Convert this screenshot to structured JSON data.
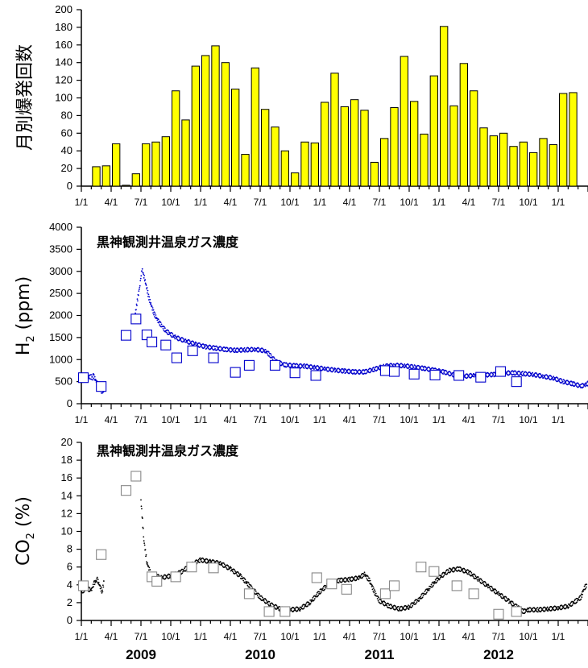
{
  "years": [
    "2009",
    "2010",
    "2011",
    "2012"
  ],
  "x_tick_labels": [
    "1/1",
    "4/1",
    "7/1",
    "10/1",
    "1/1",
    "4/1",
    "7/1",
    "10/1",
    "1/1",
    "4/1",
    "7/1",
    "10/1",
    "1/1",
    "4/1",
    "7/1",
    "10/1",
    "1/1"
  ],
  "chart_data": [
    {
      "type": "bar",
      "ylabel": "月別爆発回数",
      "ylim": [
        0,
        200
      ],
      "yticks": [
        0,
        20,
        40,
        60,
        80,
        100,
        120,
        140,
        160,
        180,
        200
      ],
      "color": "#ffff00",
      "categories": [
        "2008-01",
        "2008-02",
        "2008-03",
        "2008-04",
        "2008-05",
        "2008-06",
        "2008-07",
        "2008-08",
        "2008-09",
        "2008-10",
        "2008-11",
        "2008-12",
        "2009-01",
        "2009-02",
        "2009-03",
        "2009-04",
        "2009-05",
        "2009-06",
        "2009-07",
        "2009-08",
        "2009-09",
        "2009-10",
        "2009-11",
        "2009-12",
        "2010-01",
        "2010-02",
        "2010-03",
        "2010-04",
        "2010-05",
        "2010-06",
        "2010-07",
        "2010-08",
        "2010-09",
        "2010-10",
        "2010-11",
        "2010-12",
        "2011-01",
        "2011-02",
        "2011-03",
        "2011-04",
        "2011-05",
        "2011-06",
        "2011-07",
        "2011-08",
        "2011-09",
        "2011-10",
        "2011-11",
        "2011-12",
        "2012-01",
        "2012-02",
        "2012-03"
      ],
      "values": [
        0,
        22,
        23,
        48,
        1,
        14,
        48,
        50,
        56,
        108,
        75,
        136,
        148,
        159,
        140,
        110,
        36,
        134,
        87,
        67,
        40,
        15,
        50,
        49,
        95,
        128,
        90,
        98,
        86,
        27,
        54,
        89,
        147,
        96,
        59,
        125,
        181,
        91,
        139,
        108,
        66,
        57,
        60,
        45,
        50,
        38,
        54,
        47,
        105,
        106,
        0
      ]
    },
    {
      "type": "scatter",
      "title": "黒神観測井温泉ガス濃度",
      "ylabel": "H2 (ppm)",
      "ylim": [
        0,
        4000
      ],
      "yticks": [
        0,
        500,
        1000,
        1500,
        2000,
        2500,
        3000,
        3500,
        4000
      ],
      "color": "#0000cc",
      "continuous_series": [
        [
          0.0,
          550
        ],
        [
          0.2,
          540
        ],
        [
          0.6,
          600
        ],
        [
          1.0,
          610
        ],
        [
          1.1,
          560
        ],
        [
          1.2,
          640
        ],
        [
          2.05,
          270
        ],
        [
          2.3,
          330
        ],
        [
          5.4,
          2000
        ],
        [
          5.9,
          2700
        ],
        [
          6.1,
          3050
        ],
        [
          6.3,
          2900
        ],
        [
          6.8,
          2400
        ],
        [
          7.3,
          2050
        ],
        [
          7.8,
          1850
        ],
        [
          8.5,
          1650
        ],
        [
          9.5,
          1500
        ],
        [
          10.5,
          1420
        ],
        [
          11.5,
          1350
        ],
        [
          12.5,
          1290
        ],
        [
          13.5,
          1260
        ],
        [
          14.5,
          1230
        ],
        [
          15.5,
          1210
        ],
        [
          16.5,
          1220
        ],
        [
          17.5,
          1230
        ],
        [
          18.5,
          1200
        ],
        [
          19.0,
          1100
        ],
        [
          19.6,
          950
        ],
        [
          20.5,
          880
        ],
        [
          21.5,
          860
        ],
        [
          22.5,
          850
        ],
        [
          23.5,
          820
        ],
        [
          24.5,
          790
        ],
        [
          25.5,
          760
        ],
        [
          26.5,
          740
        ],
        [
          27.5,
          720
        ],
        [
          28.5,
          720
        ],
        [
          29.5,
          780
        ],
        [
          30.5,
          850
        ],
        [
          31.5,
          870
        ],
        [
          32.5,
          860
        ],
        [
          33.5,
          830
        ],
        [
          34.5,
          800
        ],
        [
          35.5,
          760
        ],
        [
          36.5,
          720
        ],
        [
          37.5,
          650
        ],
        [
          38.5,
          620
        ],
        [
          39.5,
          640
        ],
        [
          40.5,
          650
        ],
        [
          41.5,
          660
        ],
        [
          42.5,
          690
        ],
        [
          43.5,
          700
        ],
        [
          44.5,
          680
        ],
        [
          45.5,
          660
        ],
        [
          46.5,
          620
        ],
        [
          47.5,
          580
        ],
        [
          48.5,
          500
        ],
        [
          49.5,
          450
        ],
        [
          50.3,
          400
        ],
        [
          50.8,
          430
        ],
        [
          51.2,
          490
        ]
      ],
      "squares": [
        [
          0.2,
          590
        ],
        [
          2.0,
          390
        ],
        [
          4.5,
          1550
        ],
        [
          5.5,
          1920
        ],
        [
          6.6,
          1560
        ],
        [
          7.1,
          1400
        ],
        [
          8.5,
          1330
        ],
        [
          9.6,
          1040
        ],
        [
          11.2,
          1200
        ],
        [
          13.3,
          1040
        ],
        [
          15.5,
          710
        ],
        [
          16.9,
          870
        ],
        [
          19.5,
          870
        ],
        [
          21.5,
          700
        ],
        [
          23.6,
          640
        ],
        [
          30.6,
          750
        ],
        [
          31.5,
          730
        ],
        [
          33.5,
          670
        ],
        [
          35.6,
          650
        ],
        [
          38.0,
          640
        ],
        [
          40.2,
          600
        ],
        [
          42.2,
          730
        ],
        [
          43.8,
          500
        ]
      ]
    },
    {
      "type": "scatter",
      "title": "黒神観測井温泉ガス濃度",
      "ylabel": "CO2 (%)",
      "ylim": [
        0,
        20
      ],
      "yticks": [
        0,
        2,
        4,
        6,
        8,
        10,
        12,
        14,
        16,
        18,
        20
      ],
      "color": "#000000",
      "continuous_series": [
        [
          0.0,
          3.2
        ],
        [
          0.5,
          3.6
        ],
        [
          1.0,
          3.4
        ],
        [
          1.3,
          4.2
        ],
        [
          1.6,
          4.6
        ],
        [
          2.1,
          3.2
        ],
        [
          2.3,
          4.5
        ],
        [
          6.0,
          13.5
        ],
        [
          6.3,
          9.0
        ],
        [
          6.6,
          6.5
        ],
        [
          7.0,
          5.2
        ],
        [
          8.0,
          4.8
        ],
        [
          9.0,
          5.0
        ],
        [
          10.0,
          5.4
        ],
        [
          11.0,
          6.2
        ],
        [
          12.0,
          6.8
        ],
        [
          13.0,
          6.6
        ],
        [
          14.0,
          6.4
        ],
        [
          15.0,
          5.8
        ],
        [
          16.0,
          5.0
        ],
        [
          17.0,
          3.8
        ],
        [
          18.0,
          2.6
        ],
        [
          19.0,
          1.8
        ],
        [
          20.0,
          1.3
        ],
        [
          21.0,
          1.2
        ],
        [
          22.0,
          1.3
        ],
        [
          23.0,
          2.0
        ],
        [
          24.0,
          3.2
        ],
        [
          25.0,
          4.2
        ],
        [
          26.0,
          4.5
        ],
        [
          27.0,
          4.6
        ],
        [
          28.0,
          4.8
        ],
        [
          28.5,
          5.2
        ],
        [
          29.0,
          4.5
        ],
        [
          29.5,
          3.2
        ],
        [
          30.0,
          2.2
        ],
        [
          31.0,
          1.6
        ],
        [
          32.0,
          1.3
        ],
        [
          33.0,
          1.5
        ],
        [
          34.0,
          2.4
        ],
        [
          35.0,
          3.6
        ],
        [
          36.0,
          4.8
        ],
        [
          37.0,
          5.6
        ],
        [
          38.0,
          5.8
        ],
        [
          39.0,
          5.4
        ],
        [
          40.0,
          4.6
        ],
        [
          41.0,
          3.8
        ],
        [
          42.0,
          3.0
        ],
        [
          43.0,
          2.2
        ],
        [
          44.0,
          1.4
        ],
        [
          44.5,
          1.0
        ],
        [
          45.0,
          1.2
        ],
        [
          46.0,
          1.2
        ],
        [
          47.0,
          1.3
        ],
        [
          48.0,
          1.4
        ],
        [
          49.0,
          1.6
        ],
        [
          49.8,
          2.2
        ],
        [
          50.3,
          2.6
        ],
        [
          50.6,
          3.6
        ],
        [
          50.9,
          4.0
        ]
      ],
      "squares": [
        [
          0.2,
          3.9
        ],
        [
          2.0,
          7.4
        ],
        [
          4.5,
          14.6
        ],
        [
          5.5,
          16.2
        ],
        [
          7.1,
          4.9
        ],
        [
          7.6,
          4.4
        ],
        [
          9.5,
          4.9
        ],
        [
          11.1,
          6.0
        ],
        [
          13.3,
          5.9
        ],
        [
          16.9,
          3.0
        ],
        [
          18.9,
          1.0
        ],
        [
          20.5,
          1.0
        ],
        [
          23.7,
          4.8
        ],
        [
          25.2,
          4.1
        ],
        [
          26.7,
          3.5
        ],
        [
          30.6,
          3.0
        ],
        [
          31.5,
          3.9
        ],
        [
          34.2,
          6.0
        ],
        [
          35.5,
          5.5
        ],
        [
          37.8,
          3.9
        ],
        [
          39.5,
          3.0
        ],
        [
          42.0,
          0.7
        ],
        [
          43.8,
          1.0
        ]
      ]
    }
  ]
}
